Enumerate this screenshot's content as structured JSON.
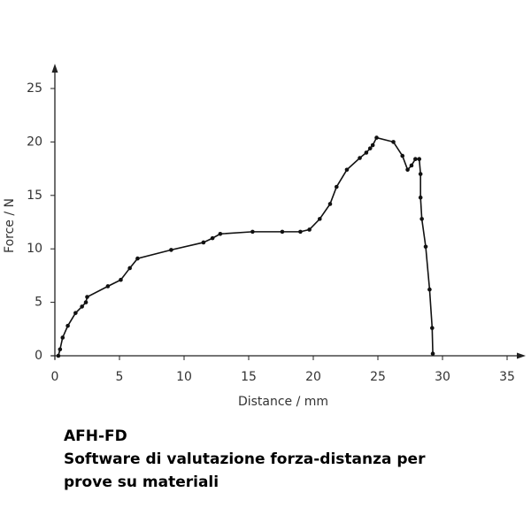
{
  "chart_data": {
    "type": "line",
    "xlabel": "Distance / mm",
    "ylabel": "Force / N",
    "x": [
      0.27,
      0.4,
      0.6,
      1.0,
      1.6,
      2.1,
      2.4,
      2.5,
      4.1,
      5.1,
      5.8,
      6.4,
      9.0,
      11.5,
      12.2,
      12.8,
      15.3,
      17.6,
      19.0,
      19.7,
      20.5,
      21.3,
      21.8,
      22.6,
      23.6,
      24.1,
      24.4,
      24.6,
      24.9,
      26.2,
      26.9,
      27.3,
      27.6,
      27.9,
      28.2,
      28.3,
      28.3,
      28.4,
      28.7,
      29.0,
      29.2,
      29.25
    ],
    "series": [
      {
        "color": "#111111",
        "values": [
          0,
          0.6,
          1.7,
          2.8,
          4.0,
          4.6,
          5.0,
          5.5,
          6.5,
          7.1,
          8.2,
          9.1,
          9.9,
          10.6,
          11.0,
          11.4,
          11.6,
          11.6,
          11.6,
          11.8,
          12.8,
          14.2,
          15.8,
          17.4,
          18.5,
          19.0,
          19.4,
          19.7,
          20.4,
          20.0,
          18.7,
          17.4,
          17.8,
          18.4,
          18.4,
          17.0,
          14.8,
          12.8,
          10.2,
          6.2,
          2.6,
          0.2
        ]
      }
    ],
    "xlim": [
      0,
      36
    ],
    "ylim": [
      0,
      27
    ],
    "xticks": [
      0,
      5,
      10,
      15,
      20,
      25,
      30,
      35
    ],
    "yticks": [
      0,
      5,
      10,
      15,
      20,
      25
    ],
    "grid": false
  },
  "caption": {
    "title": "AFH-FD",
    "lines": [
      "Software di valutazione forza-distanza per",
      "prove su materiali"
    ]
  }
}
